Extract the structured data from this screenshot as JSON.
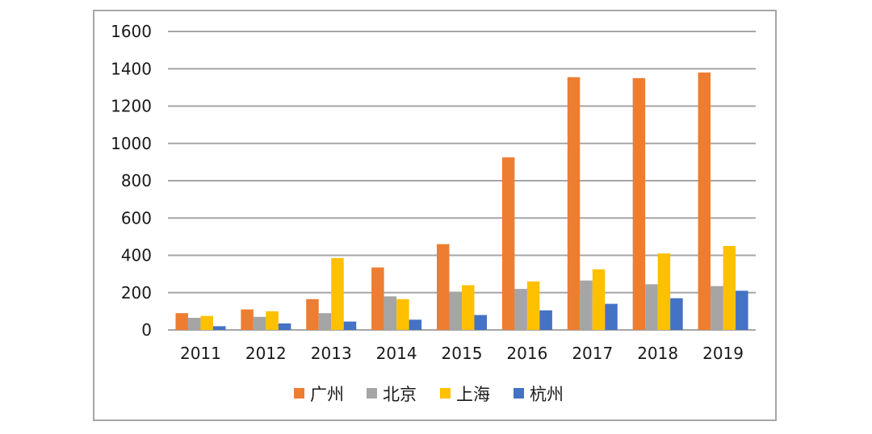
{
  "chart_data": {
    "type": "bar",
    "title": "",
    "xlabel": "",
    "ylabel": "",
    "categories": [
      "2011",
      "2012",
      "2013",
      "2014",
      "2015",
      "2016",
      "2017",
      "2018",
      "2019"
    ],
    "series": [
      {
        "name": "广州",
        "color": "#ED7D31",
        "values": [
          90,
          110,
          165,
          335,
          460,
          925,
          1355,
          1350,
          1380
        ]
      },
      {
        "name": "北京",
        "color": "#A5A5A5",
        "values": [
          65,
          70,
          90,
          180,
          205,
          220,
          265,
          245,
          235
        ]
      },
      {
        "name": "上海",
        "color": "#FFC000",
        "values": [
          75,
          100,
          385,
          165,
          240,
          260,
          325,
          410,
          450
        ]
      },
      {
        "name": "杭州",
        "color": "#4472C4",
        "values": [
          20,
          35,
          45,
          55,
          80,
          105,
          140,
          170,
          210
        ]
      }
    ],
    "ylim": [
      0,
      1600
    ],
    "yticks": [
      0,
      200,
      400,
      600,
      800,
      1000,
      1200,
      1400,
      1600
    ],
    "grid": true,
    "legend_position": "bottom"
  }
}
